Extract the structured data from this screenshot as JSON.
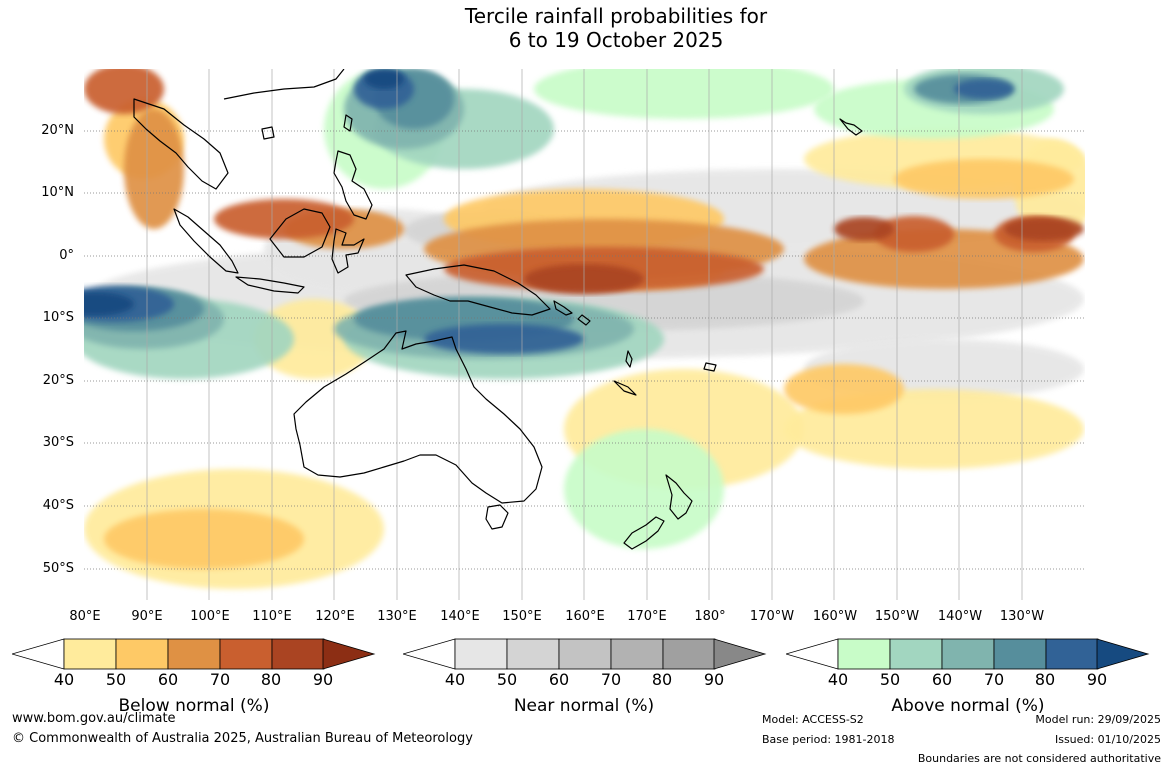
{
  "title": {
    "line1": "Tercile rainfall probabilities for",
    "line2": "6 to 19 October 2025"
  },
  "map": {
    "lat_labels": [
      "20°N",
      "10°N",
      "0°",
      "10°S",
      "20°S",
      "30°S",
      "40°S",
      "50°S"
    ],
    "lon_labels": [
      "80°E",
      "90°E",
      "100°E",
      "110°E",
      "120°E",
      "130°E",
      "140°E",
      "150°E",
      "160°E",
      "170°E",
      "180°",
      "170°W",
      "160°W",
      "150°W",
      "140°W",
      "130°W"
    ],
    "colors": {
      "below": [
        "#ffeb9c",
        "#fec966",
        "#df9144",
        "#c95f2f",
        "#aa4422",
        "#8c2e14"
      ],
      "near": [
        "#e6e6e6",
        "#d4d4d4",
        "#c3c3c3",
        "#b2b2b2",
        "#a0a0a0",
        "#888888"
      ],
      "above": [
        "#c8fcc8",
        "#a2d6c0",
        "#80b4ae",
        "#568e9c",
        "#316296",
        "#164a80"
      ]
    }
  },
  "legends": [
    {
      "title": "Below normal (%)",
      "ticks": [
        "40",
        "50",
        "60",
        "70",
        "80",
        "90"
      ]
    },
    {
      "title": "Near normal (%)",
      "ticks": [
        "40",
        "50",
        "60",
        "70",
        "80",
        "90"
      ]
    },
    {
      "title": "Above normal (%)",
      "ticks": [
        "40",
        "50",
        "60",
        "70",
        "80",
        "90"
      ]
    }
  ],
  "footer": {
    "website": "www.bom.gov.au/climate",
    "copyright": "© Commonwealth of Australia 2025, Australian Bureau of Meteorology",
    "model": "Model: ACCESS-S2",
    "base_period": "Base period: 1981-2018",
    "model_run": "Model run: 29/09/2025",
    "issued": "Issued: 01/10/2025",
    "disclaimer": "Boundaries are not considered authoritative"
  }
}
